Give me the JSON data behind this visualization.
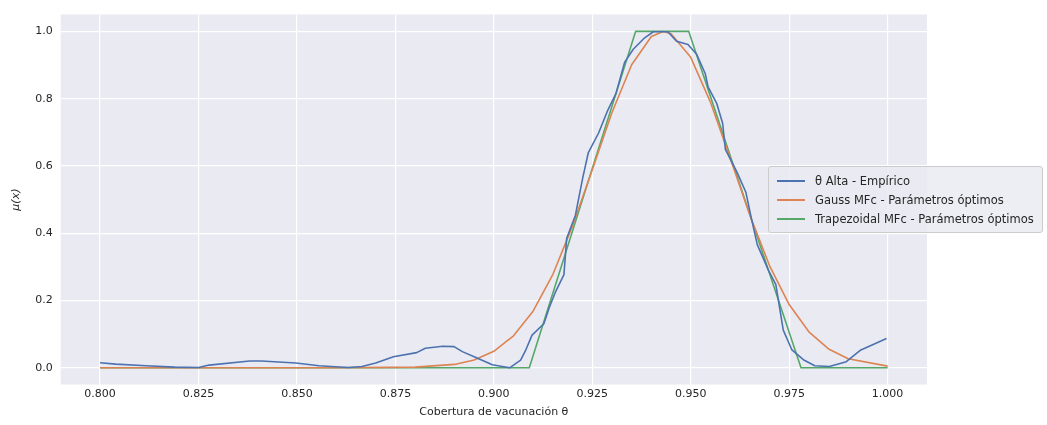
{
  "chart_data": {
    "type": "line",
    "xlabel": "Cobertura de vacunación θ",
    "ylabel": "μ(x)",
    "xlim": [
      0.79,
      1.01
    ],
    "ylim": [
      -0.05,
      1.05
    ],
    "xticks": [
      {
        "value": 0.8,
        "label": "0.800"
      },
      {
        "value": 0.825,
        "label": "0.825"
      },
      {
        "value": 0.85,
        "label": "0.850"
      },
      {
        "value": 0.875,
        "label": "0.875"
      },
      {
        "value": 0.9,
        "label": "0.900"
      },
      {
        "value": 0.925,
        "label": "0.925"
      },
      {
        "value": 0.95,
        "label": "0.950"
      },
      {
        "value": 0.975,
        "label": "0.975"
      },
      {
        "value": 1.0,
        "label": "1.000"
      }
    ],
    "yticks": [
      {
        "value": 0,
        "label": "0.0"
      },
      {
        "value": 0.2,
        "label": "0.2"
      },
      {
        "value": 0.4,
        "label": "0.4"
      },
      {
        "value": 0.6,
        "label": "0.6"
      },
      {
        "value": 0.8,
        "label": "0.8"
      },
      {
        "value": 1.0,
        "label": "1.0"
      }
    ],
    "grid": true,
    "legend": "right",
    "series": [
      {
        "name": "θ Alta - Empírico",
        "color": "#4c72b0",
        "x": [
          0.8,
          0.804,
          0.8117,
          0.819,
          0.825,
          0.8277,
          0.838,
          0.841,
          0.8497,
          0.8556,
          0.863,
          0.8665,
          0.87,
          0.8745,
          0.8804,
          0.8826,
          0.887,
          0.8899,
          0.892,
          0.895,
          0.8996,
          0.904,
          0.9068,
          0.908,
          0.9097,
          0.9127,
          0.9141,
          0.9156,
          0.9178,
          0.9185,
          0.9207,
          0.9226,
          0.924,
          0.9266,
          0.9288,
          0.931,
          0.9332,
          0.9354,
          0.9383,
          0.9405,
          0.9442,
          0.9464,
          0.9493,
          0.9515,
          0.9537,
          0.9544,
          0.9566,
          0.9581,
          0.9588,
          0.9618,
          0.964,
          0.9654,
          0.9669,
          0.9698,
          0.9716,
          0.9735,
          0.9757,
          0.9786,
          0.9815,
          0.9852,
          0.9895,
          0.9932,
          0.9969,
          0.9997
        ],
        "values": [
          0.015,
          0.011,
          0.006,
          0.002,
          0.001,
          0.008,
          0.02,
          0.02,
          0.014,
          0.006,
          0.001,
          0.004,
          0.014,
          0.033,
          0.045,
          0.058,
          0.064,
          0.063,
          0.048,
          0.033,
          0.009,
          0.0,
          0.023,
          0.05,
          0.097,
          0.131,
          0.18,
          0.224,
          0.277,
          0.385,
          0.453,
          0.566,
          0.64,
          0.698,
          0.762,
          0.815,
          0.908,
          0.947,
          0.981,
          0.999,
          0.999,
          0.971,
          0.961,
          0.932,
          0.874,
          0.835,
          0.786,
          0.727,
          0.649,
          0.58,
          0.522,
          0.444,
          0.366,
          0.288,
          0.248,
          0.112,
          0.053,
          0.024,
          0.006,
          0.004,
          0.018,
          0.053,
          0.072,
          0.087
        ]
      },
      {
        "name": "Gauss MFc - Parámetros óptimos",
        "color": "#dd8452",
        "x": [
          0.8,
          0.86,
          0.88,
          0.89,
          0.895,
          0.9,
          0.905,
          0.91,
          0.915,
          0.92,
          0.925,
          0.93,
          0.935,
          0.94,
          0.943,
          0.945,
          0.95,
          0.955,
          0.96,
          0.965,
          0.97,
          0.975,
          0.98,
          0.985,
          0.99,
          1.0
        ],
        "values": [
          0,
          0,
          0.002,
          0.01,
          0.023,
          0.049,
          0.095,
          0.169,
          0.278,
          0.422,
          0.589,
          0.759,
          0.901,
          0.985,
          1.0,
          0.993,
          0.923,
          0.79,
          0.624,
          0.454,
          0.304,
          0.188,
          0.107,
          0.056,
          0.027,
          0.005
        ]
      },
      {
        "name": "Trapezoidal MFc - Parámetros óptimos",
        "color": "#55a868",
        "x": [
          0.8,
          0.909,
          0.936,
          0.9495,
          0.978,
          1.0
        ],
        "values": [
          0,
          0,
          1,
          1,
          0,
          0
        ]
      }
    ]
  }
}
